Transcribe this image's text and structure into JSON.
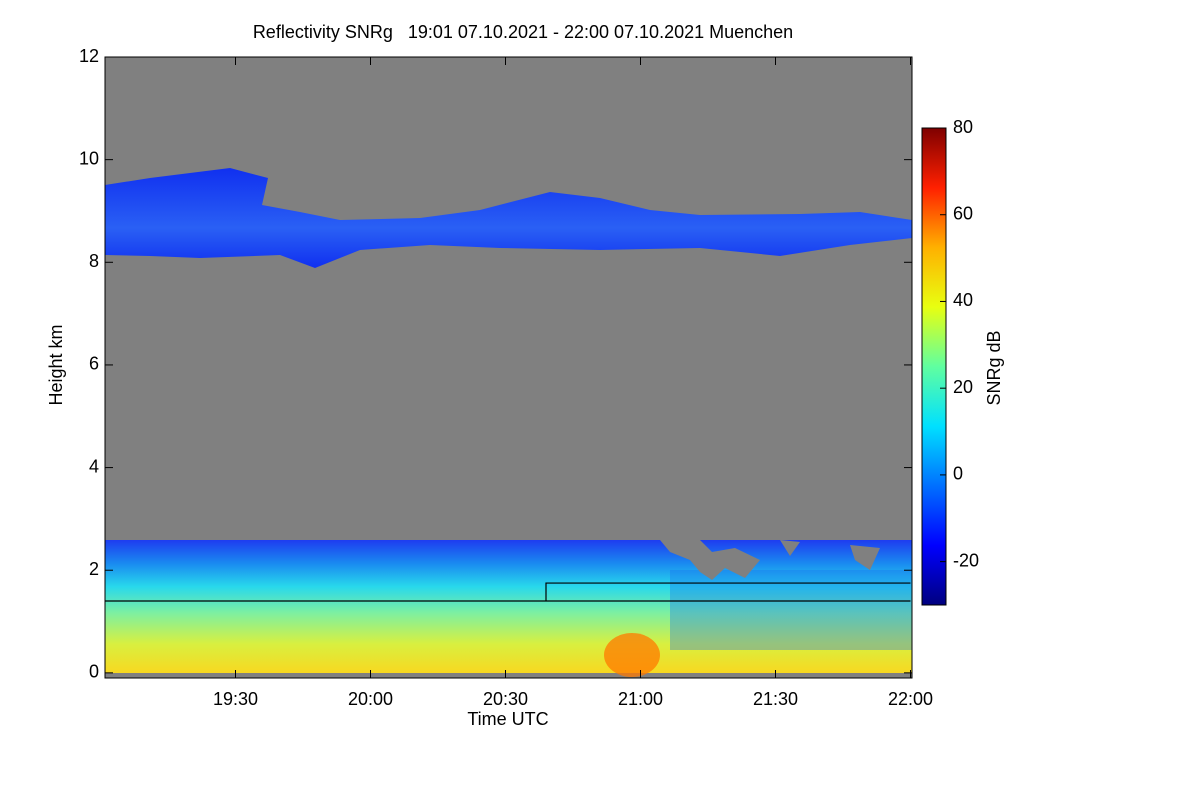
{
  "chart_data": {
    "type": "heatmap",
    "title": "Reflectivity SNRg   19:01 07.10.2021 - 22:00 07.10.2021 Muenchen",
    "x_label": "Time UTC",
    "y_label": "Height km",
    "xlim": [
      "19:01",
      "22:00"
    ],
    "xticks": [
      "19:30",
      "20:00",
      "20:30",
      "21:00",
      "21:30",
      "22:00"
    ],
    "ylim": [
      -0.1,
      12
    ],
    "yticks": [
      0,
      2,
      4,
      6,
      8,
      10,
      12
    ],
    "colorbar": {
      "label": "SNRg dB",
      "lim": [
        -30,
        80
      ],
      "ticks": [
        -20,
        0,
        20,
        40,
        60,
        80
      ],
      "colormap": [
        "#00007f",
        "#0000ff",
        "#0070ff",
        "#00e0ff",
        "#60ffa0",
        "#e8ff10",
        "#ffb000",
        "#ff2000",
        "#7f0000"
      ]
    },
    "series": [
      {
        "color": "#000000",
        "x": [
          "19:01",
          "22:00"
        ],
        "values": [
          1.4,
          1.4
        ]
      },
      {
        "color": "#000000",
        "x": [
          "20:39",
          "20:39",
          "22:00"
        ],
        "values": [
          1.4,
          1.75,
          1.75
        ]
      }
    ]
  }
}
